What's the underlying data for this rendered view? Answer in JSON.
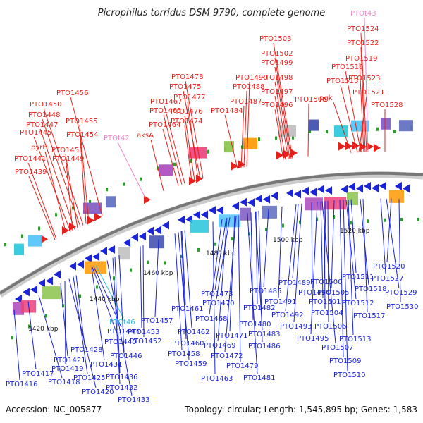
{
  "title": "Picrophilus torridus DSM 9790, complete genome",
  "accession": "Accession: NC_005877",
  "topology": "Topology: circular; Length: 1,545,895 bp; Genes: 1,583",
  "colors": {
    "forward": "#e8201c",
    "reverse": "#1a24d8",
    "rna": "#ee88cc",
    "trna_blue": "#33bbee",
    "backbone": "#888888"
  },
  "scale_labels": [
    "1420 kbp",
    "1440 kbp",
    "1460 kbp",
    "1480 kbp",
    "1500 kbp",
    "1520 kbp"
  ],
  "top_labels": [
    {
      "t": "PTOt43",
      "c": "rna"
    },
    {
      "t": "PTO1524",
      "c": "forward"
    },
    {
      "t": "PTO1522",
      "c": "forward"
    },
    {
      "t": "PTO1519",
      "c": "forward"
    },
    {
      "t": "PTO1516",
      "c": "forward"
    },
    {
      "t": "PTO1523",
      "c": "forward"
    },
    {
      "t": "PTO1515",
      "c": "forward"
    },
    {
      "t": "PTO1521",
      "c": "forward"
    },
    {
      "t": "pgk",
      "c": "forward"
    },
    {
      "t": "PTO1528",
      "c": "forward"
    },
    {
      "t": "PTO1508",
      "c": "forward"
    },
    {
      "t": "PTO1503",
      "c": "forward"
    },
    {
      "t": "PTO1502",
      "c": "forward"
    },
    {
      "t": "PTO1499",
      "c": "forward"
    },
    {
      "t": "PTO1498",
      "c": "forward"
    },
    {
      "t": "PTO1497",
      "c": "forward"
    },
    {
      "t": "PTO1496",
      "c": "forward"
    },
    {
      "t": "PTO1490",
      "c": "forward"
    },
    {
      "t": "PTO1488",
      "c": "forward"
    },
    {
      "t": "PTO1487",
      "c": "forward"
    },
    {
      "t": "PTO1484",
      "c": "forward"
    },
    {
      "t": "PTO1478",
      "c": "forward"
    },
    {
      "t": "PTO1475",
      "c": "forward"
    },
    {
      "t": "PTO1477",
      "c": "forward"
    },
    {
      "t": "PTO1467",
      "c": "forward"
    },
    {
      "t": "PTO1465",
      "c": "forward"
    },
    {
      "t": "PTO1476",
      "c": "forward"
    },
    {
      "t": "PTO1474",
      "c": "forward"
    },
    {
      "t": "PTO1464",
      "c": "forward"
    },
    {
      "t": "aksA",
      "c": "forward"
    },
    {
      "t": "PTOt42",
      "c": "rna"
    },
    {
      "t": "PTO1456",
      "c": "forward"
    },
    {
      "t": "PTO1450",
      "c": "forward"
    },
    {
      "t": "PTO1448",
      "c": "forward"
    },
    {
      "t": "PTO1455",
      "c": "forward"
    },
    {
      "t": "PTO1447",
      "c": "forward"
    },
    {
      "t": "PTO1445",
      "c": "forward"
    },
    {
      "t": "PTO1454",
      "c": "forward"
    },
    {
      "t": "pyrH",
      "c": "forward"
    },
    {
      "t": "PTO1451",
      "c": "forward"
    },
    {
      "t": "PTO1441",
      "c": "forward"
    },
    {
      "t": "PTO1449",
      "c": "forward"
    },
    {
      "t": "PTO1439",
      "c": "forward"
    }
  ],
  "bottom_labels": [
    {
      "t": "PTO1520",
      "c": "reverse"
    },
    {
      "t": "PTO1527",
      "c": "reverse"
    },
    {
      "t": "PTO1529",
      "c": "reverse"
    },
    {
      "t": "PTO1530",
      "c": "reverse"
    },
    {
      "t": "PTO1511",
      "c": "reverse"
    },
    {
      "t": "PTO1518",
      "c": "reverse"
    },
    {
      "t": "PTO1512",
      "c": "reverse"
    },
    {
      "t": "PTO1517",
      "c": "reverse"
    },
    {
      "t": "PTO1500",
      "c": "reverse"
    },
    {
      "t": "PTO1505",
      "c": "reverse"
    },
    {
      "t": "PTO1489",
      "c": "reverse"
    },
    {
      "t": "PTO1494",
      "c": "reverse"
    },
    {
      "t": "PTO1485",
      "c": "reverse"
    },
    {
      "t": "PTO1501",
      "c": "reverse"
    },
    {
      "t": "PTO1491",
      "c": "reverse"
    },
    {
      "t": "PTO1504",
      "c": "reverse"
    },
    {
      "t": "PTO1473",
      "c": "reverse"
    },
    {
      "t": "PTO1492",
      "c": "reverse"
    },
    {
      "t": "PTO1470",
      "c": "reverse"
    },
    {
      "t": "PTO1482",
      "c": "reverse"
    },
    {
      "t": "PTO1506",
      "c": "reverse"
    },
    {
      "t": "PTO1493",
      "c": "reverse"
    },
    {
      "t": "PTO1461",
      "c": "reverse"
    },
    {
      "t": "PTO1513",
      "c": "reverse"
    },
    {
      "t": "PTO1468",
      "c": "reverse"
    },
    {
      "t": "PTO1480",
      "c": "reverse"
    },
    {
      "t": "PTO1495",
      "c": "reverse"
    },
    {
      "t": "PTO1457",
      "c": "reverse"
    },
    {
      "t": "PTO1483",
      "c": "reverse"
    },
    {
      "t": "PTO1507",
      "c": "reverse"
    },
    {
      "t": "PTOt46",
      "c": "trna"
    },
    {
      "t": "PTO1471",
      "c": "reverse"
    },
    {
      "t": "PTO1486",
      "c": "reverse"
    },
    {
      "t": "PTO1443",
      "c": "reverse"
    },
    {
      "t": "PTO1453",
      "c": "reverse"
    },
    {
      "t": "PTO1462",
      "c": "reverse"
    },
    {
      "t": "PTO1469",
      "c": "reverse"
    },
    {
      "t": "PTO1509",
      "c": "reverse"
    },
    {
      "t": "PTO1440",
      "c": "reverse"
    },
    {
      "t": "PTO1452",
      "c": "reverse"
    },
    {
      "t": "PTO1460",
      "c": "reverse"
    },
    {
      "t": "PTO1472",
      "c": "reverse"
    },
    {
      "t": "PTO1428",
      "c": "reverse"
    },
    {
      "t": "PTO1446",
      "c": "reverse"
    },
    {
      "t": "PTO1458",
      "c": "reverse"
    },
    {
      "t": "PTO1479",
      "c": "reverse"
    },
    {
      "t": "PTO1510",
      "c": "reverse"
    },
    {
      "t": "PTO1421",
      "c": "reverse"
    },
    {
      "t": "PTO1431",
      "c": "reverse"
    },
    {
      "t": "PTO1459",
      "c": "reverse"
    },
    {
      "t": "PTO1481",
      "c": "reverse"
    },
    {
      "t": "PTO1419",
      "c": "reverse"
    },
    {
      "t": "PTO1417",
      "c": "reverse"
    },
    {
      "t": "PTO1425",
      "c": "reverse"
    },
    {
      "t": "PTO1436",
      "c": "reverse"
    },
    {
      "t": "PTO1463",
      "c": "reverse"
    },
    {
      "t": "PTO1416",
      "c": "reverse"
    },
    {
      "t": "PTO1418",
      "c": "reverse"
    },
    {
      "t": "PTO1432",
      "c": "reverse"
    },
    {
      "t": "PTO1420",
      "c": "reverse"
    },
    {
      "t": "PTO1433",
      "c": "reverse"
    }
  ]
}
